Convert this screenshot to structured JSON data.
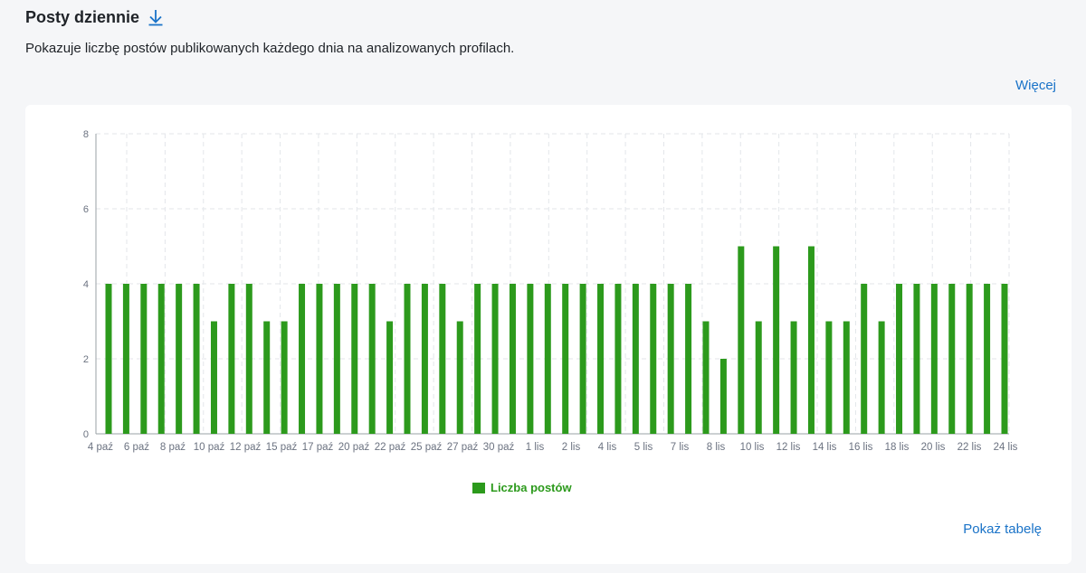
{
  "header": {
    "title": "Posty dziennie",
    "download_icon": "download-icon"
  },
  "description": "Pokazuje liczbę postów publikowanych każdego dnia na analizowanych profilach.",
  "links": {
    "more": "Więcej",
    "show_table": "Pokaż tabelę"
  },
  "colors": {
    "bar": "#2c9a1c",
    "link": "#1a73c8",
    "axis_text": "#6b7280",
    "grid": "#e3e6ea"
  },
  "chart_data": {
    "type": "bar",
    "title": "",
    "xlabel": "",
    "ylabel": "",
    "ylim": [
      0,
      8
    ],
    "yticks": [
      0,
      2,
      4,
      6,
      8
    ],
    "grid": true,
    "legend_position": "bottom",
    "x_tick_labels": [
      "4 paź",
      "6 paź",
      "8 paź",
      "10 paź",
      "12 paź",
      "15 paź",
      "17 paź",
      "20 paź",
      "22 paź",
      "25 paź",
      "27 paź",
      "30 paź",
      "1 lis",
      "2 lis",
      "4 lis",
      "5 lis",
      "7 lis",
      "8 lis",
      "10 lis",
      "12 lis",
      "14 lis",
      "16 lis",
      "18 lis",
      "20 lis",
      "22 lis",
      "24 lis"
    ],
    "series": [
      {
        "name": "Liczba postów",
        "color": "#2c9a1c",
        "values": [
          4,
          4,
          4,
          4,
          4,
          4,
          3,
          4,
          4,
          3,
          3,
          4,
          4,
          4,
          4,
          4,
          3,
          4,
          4,
          4,
          3,
          4,
          4,
          4,
          4,
          4,
          4,
          4,
          4,
          4,
          4,
          4,
          4,
          4,
          3,
          2,
          5,
          3,
          5,
          3,
          5,
          3,
          3,
          4,
          3,
          4,
          4,
          4,
          4,
          4,
          4,
          4
        ]
      }
    ]
  }
}
